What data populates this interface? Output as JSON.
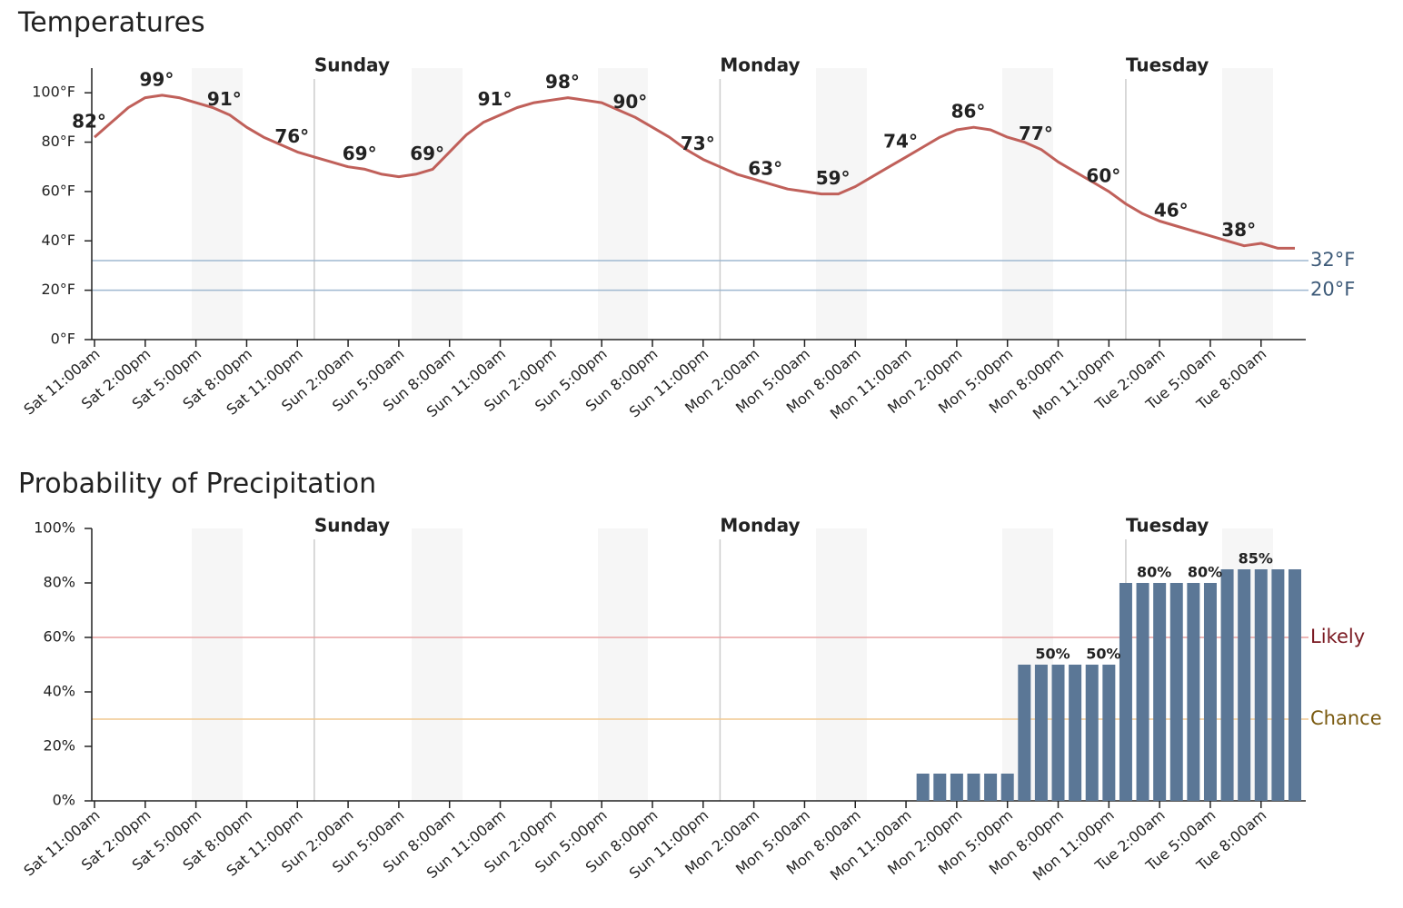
{
  "chart_data": [
    {
      "type": "line",
      "title": "Temperatures",
      "categories": [
        "Sat 11:00am",
        null,
        null,
        "Sat 2:00pm",
        null,
        null,
        "Sat 5:00pm",
        null,
        null,
        "Sat 8:00pm",
        null,
        null,
        "Sat 11:00pm",
        null,
        null,
        "Sun 2:00am",
        null,
        null,
        "Sun 5:00am",
        null,
        null,
        "Sun 8:00am",
        null,
        null,
        "Sun 11:00am",
        null,
        null,
        "Sun 2:00pm",
        null,
        null,
        "Sun 5:00pm",
        null,
        null,
        "Sun 8:00pm",
        null,
        null,
        "Sun 11:00pm",
        null,
        null,
        "Mon 2:00am",
        null,
        null,
        "Mon 5:00am",
        null,
        null,
        "Mon 8:00am",
        null,
        null,
        "Mon 11:00am",
        null,
        null,
        "Mon 2:00pm",
        null,
        null,
        "Mon 5:00pm",
        null,
        null,
        "Mon 8:00pm",
        null,
        null,
        "Mon 11:00pm",
        null,
        null,
        "Tue 2:00am",
        null,
        null,
        "Tue 5:00am",
        null,
        null,
        "Tue 8:00am",
        null,
        null
      ],
      "values": [
        82,
        88,
        94,
        98,
        99,
        98,
        96,
        94,
        91,
        86,
        82,
        79,
        76,
        74,
        72,
        70,
        69,
        67,
        66,
        67,
        69,
        76,
        83,
        88,
        91,
        94,
        96,
        97,
        98,
        97,
        96,
        93,
        90,
        86,
        82,
        77,
        73,
        70,
        67,
        65,
        63,
        61,
        60,
        59,
        59,
        62,
        66,
        70,
        74,
        78,
        82,
        85,
        86,
        85,
        82,
        80,
        77,
        72,
        68,
        64,
        60,
        55,
        51,
        48,
        46,
        44,
        42,
        40,
        38,
        39,
        37,
        37
      ],
      "value_labels": [
        "82°",
        null,
        null,
        null,
        "99°",
        null,
        null,
        null,
        "91°",
        null,
        null,
        null,
        "76°",
        null,
        null,
        null,
        "69°",
        null,
        null,
        null,
        "69°",
        null,
        null,
        null,
        "91°",
        null,
        null,
        null,
        "98°",
        null,
        null,
        null,
        "90°",
        null,
        null,
        null,
        "73°",
        null,
        null,
        null,
        "63°",
        null,
        null,
        null,
        "59°",
        null,
        null,
        null,
        "74°",
        null,
        null,
        null,
        "86°",
        null,
        null,
        null,
        "77°",
        null,
        null,
        null,
        "60°",
        null,
        null,
        null,
        "46°",
        null,
        null,
        null,
        "38°",
        null,
        null,
        null
      ],
      "color": "#c0605a",
      "ylim": [
        0,
        110
      ],
      "yticks": [
        {
          "value": 0,
          "label": "0°F"
        },
        {
          "value": 20,
          "label": "20°F"
        },
        {
          "value": 40,
          "label": "40°F"
        },
        {
          "value": 60,
          "label": "60°F"
        },
        {
          "value": 80,
          "label": "80°F"
        },
        {
          "value": 100,
          "label": "100°F"
        }
      ],
      "reference_lines": [
        {
          "value": 32,
          "label": "32°F",
          "color": "#9fb8d0",
          "text_color": "#3d5a78"
        },
        {
          "value": 20,
          "label": "20°F",
          "color": "#9fb8d0",
          "text_color": "#3d5a78"
        }
      ],
      "days": [
        "Sunday",
        "Monday",
        "Tuesday"
      ]
    },
    {
      "type": "bar",
      "title": "Probability of Precipitation",
      "categories": [
        "Sat 11:00am",
        null,
        null,
        "Sat 2:00pm",
        null,
        null,
        "Sat 5:00pm",
        null,
        null,
        "Sat 8:00pm",
        null,
        null,
        "Sat 11:00pm",
        null,
        null,
        "Sun 2:00am",
        null,
        null,
        "Sun 5:00am",
        null,
        null,
        "Sun 8:00am",
        null,
        null,
        "Sun 11:00am",
        null,
        null,
        "Sun 2:00pm",
        null,
        null,
        "Sun 5:00pm",
        null,
        null,
        "Sun 8:00pm",
        null,
        null,
        "Sun 11:00pm",
        null,
        null,
        "Mon 2:00am",
        null,
        null,
        "Mon 5:00am",
        null,
        null,
        "Mon 8:00am",
        null,
        null,
        "Mon 11:00am",
        null,
        null,
        "Mon 2:00pm",
        null,
        null,
        "Mon 5:00pm",
        null,
        null,
        "Mon 8:00pm",
        null,
        null,
        "Mon 11:00pm",
        null,
        null,
        "Tue 2:00am",
        null,
        null,
        "Tue 5:00am",
        null,
        null,
        "Tue 8:00am",
        null,
        null
      ],
      "values": [
        0,
        0,
        0,
        0,
        0,
        0,
        0,
        0,
        0,
        0,
        0,
        0,
        0,
        0,
        0,
        0,
        0,
        0,
        0,
        0,
        0,
        0,
        0,
        0,
        0,
        0,
        0,
        0,
        0,
        0,
        0,
        0,
        0,
        0,
        0,
        0,
        0,
        0,
        0,
        0,
        0,
        0,
        0,
        0,
        0,
        0,
        0,
        0,
        0,
        10,
        10,
        10,
        10,
        10,
        10,
        50,
        50,
        50,
        50,
        50,
        50,
        80,
        80,
        80,
        80,
        80,
        80,
        85,
        85,
        85,
        85,
        85
      ],
      "value_labels": [
        null,
        null,
        null,
        null,
        null,
        null,
        null,
        null,
        null,
        null,
        null,
        null,
        null,
        null,
        null,
        null,
        null,
        null,
        null,
        null,
        null,
        null,
        null,
        null,
        null,
        null,
        null,
        null,
        null,
        null,
        null,
        null,
        null,
        null,
        null,
        null,
        null,
        null,
        null,
        null,
        null,
        null,
        null,
        null,
        null,
        null,
        null,
        null,
        null,
        null,
        null,
        null,
        null,
        null,
        null,
        null,
        null,
        "50%",
        null,
        null,
        "50%",
        null,
        null,
        "80%",
        null,
        null,
        "80%",
        null,
        null,
        "85%",
        null,
        null
      ],
      "color": "#5b7796",
      "ylim": [
        0,
        100
      ],
      "yticks": [
        {
          "value": 0,
          "label": "0%"
        },
        {
          "value": 20,
          "label": "20%"
        },
        {
          "value": 40,
          "label": "40%"
        },
        {
          "value": 60,
          "label": "60%"
        },
        {
          "value": 80,
          "label": "80%"
        },
        {
          "value": 100,
          "label": "100%"
        }
      ],
      "reference_lines": [
        {
          "value": 60,
          "label": "Likely",
          "color": "#e8a0a0",
          "text_color": "#7a1a22"
        },
        {
          "value": 30,
          "label": "Chance",
          "color": "#f0c890",
          "text_color": "#7a5a10"
        }
      ],
      "days": [
        "Sunday",
        "Monday",
        "Tuesday"
      ]
    }
  ]
}
